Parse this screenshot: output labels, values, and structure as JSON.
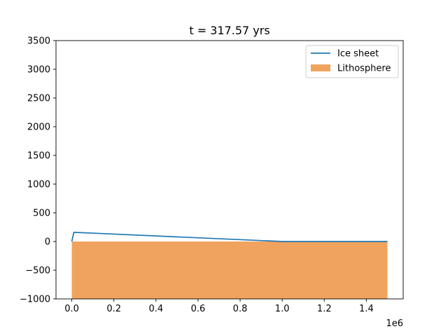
{
  "chart_data": {
    "type": "line",
    "title": "t = 317.57 yrs",
    "xlabel": "",
    "ylabel": "",
    "x_offset_label": "1e6",
    "xlim": [
      -0.075,
      1.575
    ],
    "ylim": [
      -1000,
      3500
    ],
    "x_ticks": [
      0.0,
      0.2,
      0.4,
      0.6,
      0.8,
      1.0,
      1.2,
      1.4
    ],
    "x_tick_labels": [
      "0.0",
      "0.2",
      "0.4",
      "0.6",
      "0.8",
      "1.0",
      "1.2",
      "1.4"
    ],
    "y_ticks": [
      -1000,
      -500,
      0,
      500,
      1000,
      1500,
      2000,
      2500,
      3000,
      3500
    ],
    "y_tick_labels": [
      "−1000",
      "−500",
      "0",
      "500",
      "1000",
      "1500",
      "2000",
      "2500",
      "3000",
      "3500"
    ],
    "grid": false,
    "legend_position": "upper right",
    "series": [
      {
        "name": "Ice sheet",
        "kind": "line",
        "color": "#1f77b4",
        "x": [
          0.0,
          0.01,
          1.0,
          1.5
        ],
        "y": [
          0,
          160,
          0,
          0
        ]
      },
      {
        "name": "Lithosphere",
        "kind": "area",
        "color": "#f0a35e",
        "x": [
          0.0,
          1.5
        ],
        "y_top": [
          0,
          0
        ],
        "y_bottom": [
          -1000,
          -1000
        ]
      }
    ]
  }
}
